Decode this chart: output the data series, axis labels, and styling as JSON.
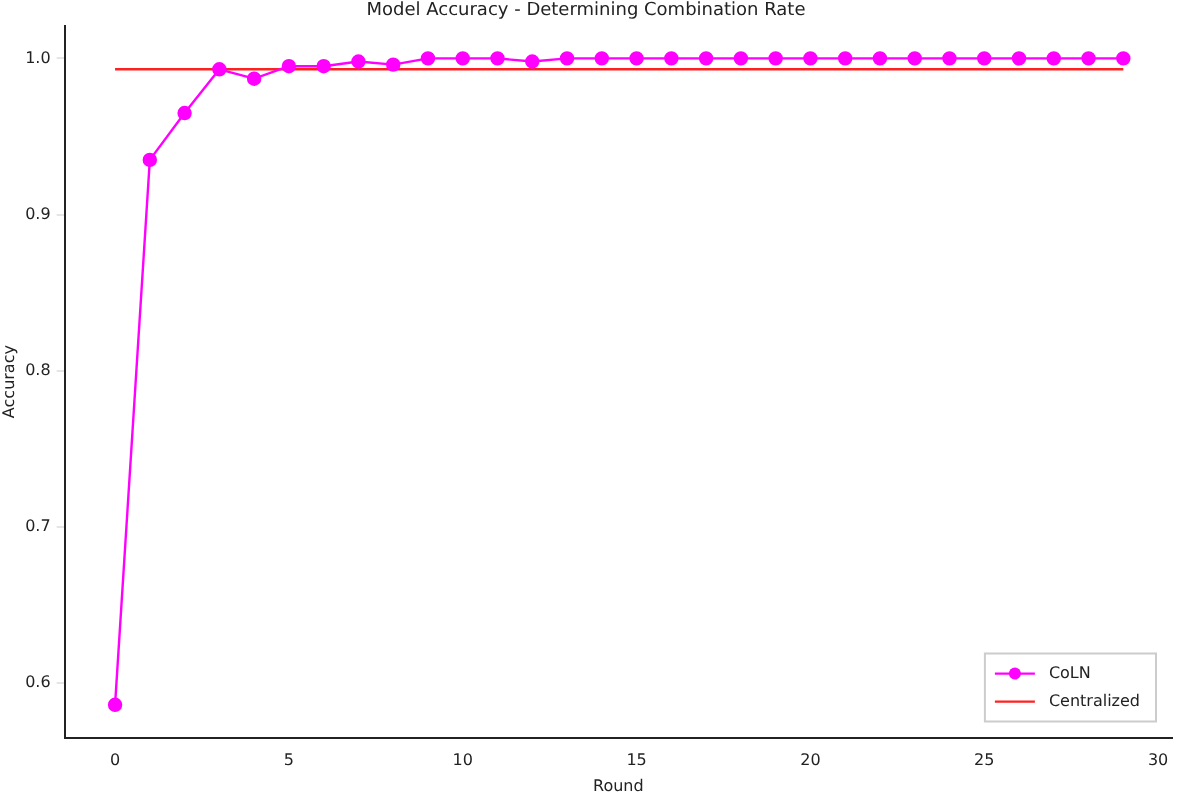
{
  "chart_data": {
    "type": "line",
    "title": "Model Accuracy - Determining Combination Rate",
    "xlabel": "Round",
    "ylabel": "Accuracy",
    "series": [
      {
        "name": "CoLN",
        "color": "#ff00ff",
        "marker": "circle",
        "x": [
          0,
          1,
          2,
          3,
          4,
          5,
          6,
          7,
          8,
          9,
          10,
          11,
          12,
          13,
          14,
          15,
          16,
          17,
          18,
          19,
          20,
          21,
          22,
          23,
          24,
          25,
          26,
          27,
          28,
          29
        ],
        "values": [
          0.586,
          0.935,
          0.965,
          0.993,
          0.987,
          0.995,
          0.995,
          0.998,
          0.996,
          1.0,
          1.0,
          1.0,
          0.998,
          1.0,
          1.0,
          1.0,
          1.0,
          1.0,
          1.0,
          1.0,
          1.0,
          1.0,
          1.0,
          1.0,
          1.0,
          1.0,
          1.0,
          1.0,
          1.0,
          1.0
        ]
      },
      {
        "name": "Centralized",
        "color": "#ff2020",
        "marker": "none",
        "x": [
          0,
          29
        ],
        "values": [
          0.993,
          0.993
        ]
      }
    ],
    "xlim": [
      -1.45,
      30.4
    ],
    "ylim": [
      0.565,
      1.021
    ],
    "xticks": [
      0,
      5,
      10,
      15,
      20,
      25,
      30
    ],
    "yticks": [
      0.6,
      0.7,
      0.8,
      0.9,
      {
        "value": 1,
        "label": "1.0"
      }
    ],
    "grid": false,
    "legend": "bottom right"
  }
}
